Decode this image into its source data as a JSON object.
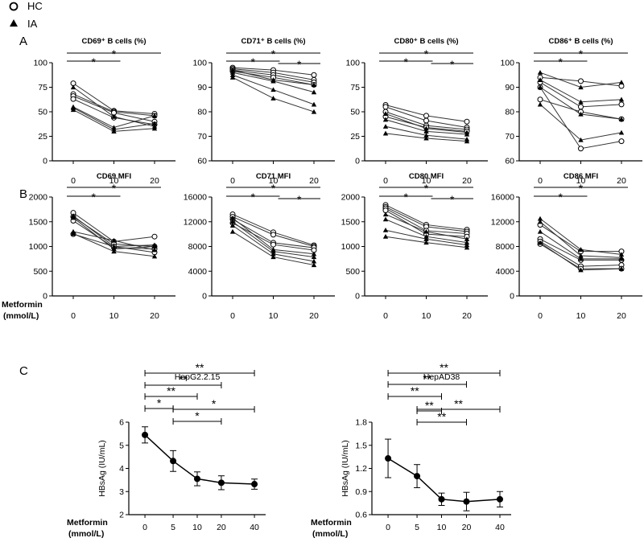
{
  "legend": [
    {
      "symbol": "open-circle",
      "label": "HC"
    },
    {
      "symbol": "filled-triangle",
      "label": "IA"
    }
  ],
  "panel_labels": {
    "a": "A",
    "b": "B",
    "c": "C"
  },
  "x_axis_label": {
    "line1": "Metformin",
    "line2": "(mmol/L)"
  },
  "chart_data": [
    {
      "id": "cd69pct",
      "type": "line",
      "title": "CD69⁺ B cells (%)",
      "categories": [
        "0",
        "10",
        "20"
      ],
      "ylim": [
        0,
        100
      ],
      "yticks": [
        "0",
        "25",
        "50",
        "75",
        "100"
      ],
      "series": [
        {
          "name": "HC",
          "values": [
            79,
            51,
            48
          ]
        },
        {
          "name": "HC",
          "values": [
            68,
            50,
            46
          ]
        },
        {
          "name": "HC",
          "values": [
            66,
            49,
            40
          ]
        },
        {
          "name": "HC",
          "values": [
            63,
            44,
            37
          ]
        },
        {
          "name": "IA",
          "values": [
            75,
            45,
            35
          ]
        },
        {
          "name": "IA",
          "values": [
            55,
            34,
            46
          ]
        },
        {
          "name": "IA",
          "values": [
            54,
            32,
            38
          ]
        },
        {
          "name": "IA",
          "values": [
            52,
            30,
            33
          ]
        }
      ],
      "brackets": [
        {
          "from": 0,
          "to": 1,
          "label": "*"
        },
        {
          "from": 0,
          "to": 2,
          "label": "*"
        }
      ]
    },
    {
      "id": "cd71pct",
      "type": "line",
      "title": "CD71⁺ B cells (%)",
      "categories": [
        "0",
        "10",
        "20"
      ],
      "ylim": [
        60,
        100
      ],
      "yticks": [
        "60",
        "70",
        "80",
        "90",
        "100"
      ],
      "series": [
        {
          "name": "HC",
          "values": [
            98,
            97,
            95
          ]
        },
        {
          "name": "HC",
          "values": [
            97.5,
            96,
            93
          ]
        },
        {
          "name": "HC",
          "values": [
            97,
            95,
            92
          ]
        },
        {
          "name": "HC",
          "values": [
            96.5,
            94,
            91
          ]
        },
        {
          "name": "IA",
          "values": [
            97,
            93,
            91
          ]
        },
        {
          "name": "IA",
          "values": [
            96,
            92.5,
            88
          ]
        },
        {
          "name": "IA",
          "values": [
            95,
            89,
            83
          ]
        },
        {
          "name": "IA",
          "values": [
            94,
            85.5,
            80
          ]
        }
      ],
      "brackets": [
        {
          "from": 0,
          "to": 1,
          "label": "*"
        },
        {
          "from": 0,
          "to": 2,
          "label": "*"
        },
        {
          "from": 1,
          "to": 2,
          "label": "*"
        }
      ]
    },
    {
      "id": "cd80pct",
      "type": "line",
      "title": "CD80⁺ B cells (%)",
      "categories": [
        "0",
        "10",
        "20"
      ],
      "ylim": [
        0,
        100
      ],
      "yticks": [
        "0",
        "25",
        "50",
        "75",
        "100"
      ],
      "series": [
        {
          "name": "HC",
          "values": [
            57,
            46,
            40
          ]
        },
        {
          "name": "HC",
          "values": [
            55,
            41,
            34
          ]
        },
        {
          "name": "HC",
          "values": [
            50,
            36,
            32
          ]
        },
        {
          "name": "HC",
          "values": [
            45,
            34,
            30
          ]
        },
        {
          "name": "IA",
          "values": [
            48,
            33,
            29
          ]
        },
        {
          "name": "IA",
          "values": [
            42,
            30,
            27
          ]
        },
        {
          "name": "IA",
          "values": [
            35,
            26,
            22
          ]
        },
        {
          "name": "IA",
          "values": [
            28,
            23,
            20
          ]
        }
      ],
      "brackets": [
        {
          "from": 0,
          "to": 1,
          "label": "*"
        },
        {
          "from": 0,
          "to": 2,
          "label": "*"
        },
        {
          "from": 1,
          "to": 2,
          "label": "*"
        }
      ]
    },
    {
      "id": "cd86pct",
      "type": "line",
      "title": "CD86⁺ B cells (%)",
      "categories": [
        "0",
        "10",
        "20"
      ],
      "ylim": [
        60,
        100
      ],
      "yticks": [
        "60",
        "70",
        "80",
        "90",
        "100"
      ],
      "series": [
        {
          "name": "HC",
          "values": [
            94,
            92.5,
            90.5
          ]
        },
        {
          "name": "HC",
          "values": [
            92,
            82,
            83
          ]
        },
        {
          "name": "HC",
          "values": [
            90,
            65,
            68
          ]
        },
        {
          "name": "HC",
          "values": [
            85,
            80,
            77
          ]
        },
        {
          "name": "IA",
          "values": [
            96,
            90,
            92
          ]
        },
        {
          "name": "IA",
          "values": [
            93,
            84,
            85
          ]
        },
        {
          "name": "IA",
          "values": [
            90,
            79,
            77
          ]
        },
        {
          "name": "IA",
          "values": [
            83,
            68.5,
            71.5
          ]
        }
      ],
      "brackets": [
        {
          "from": 0,
          "to": 1,
          "label": "*"
        },
        {
          "from": 0,
          "to": 2,
          "label": "*"
        }
      ]
    },
    {
      "id": "cd69mfi",
      "type": "line",
      "title": "CD69 MFI",
      "categories": [
        "0",
        "10",
        "20"
      ],
      "ylim": [
        0,
        2000
      ],
      "yticks": [
        "0",
        "500",
        "1000",
        "1500",
        "2000"
      ],
      "series": [
        {
          "name": "HC",
          "values": [
            1680,
            1100,
            1200
          ]
        },
        {
          "name": "HC",
          "values": [
            1600,
            1050,
            1000
          ]
        },
        {
          "name": "HC",
          "values": [
            1520,
            980,
            950
          ]
        },
        {
          "name": "HC",
          "values": [
            1250,
            1000,
            880
          ]
        },
        {
          "name": "IA",
          "values": [
            1620,
            1000,
            1030
          ]
        },
        {
          "name": "IA",
          "values": [
            1580,
            950,
            1000
          ]
        },
        {
          "name": "IA",
          "values": [
            1300,
            1120,
            930
          ]
        },
        {
          "name": "IA",
          "values": [
            1260,
            900,
            800
          ]
        }
      ],
      "brackets": [
        {
          "from": 0,
          "to": 1,
          "label": "*"
        },
        {
          "from": 0,
          "to": 2,
          "label": "*"
        }
      ]
    },
    {
      "id": "cd71mfi",
      "type": "line",
      "title": "CD71 MFI",
      "categories": [
        "0",
        "10",
        "20"
      ],
      "ylim": [
        0,
        16000
      ],
      "yticks": [
        "0",
        "4000",
        "8000",
        "12000",
        "16000"
      ],
      "series": [
        {
          "name": "HC",
          "values": [
            13200,
            10300,
            8200
          ]
        },
        {
          "name": "HC",
          "values": [
            12800,
            9900,
            8000
          ]
        },
        {
          "name": "HC",
          "values": [
            12400,
            8600,
            7800
          ]
        },
        {
          "name": "HC",
          "values": [
            11800,
            8300,
            7400
          ]
        },
        {
          "name": "IA",
          "values": [
            12600,
            7500,
            6800
          ]
        },
        {
          "name": "IA",
          "values": [
            12000,
            7200,
            6300
          ]
        },
        {
          "name": "IA",
          "values": [
            11400,
            6800,
            5600
          ]
        },
        {
          "name": "IA",
          "values": [
            10400,
            6300,
            5000
          ]
        }
      ],
      "brackets": [
        {
          "from": 0,
          "to": 1,
          "label": "*"
        },
        {
          "from": 0,
          "to": 2,
          "label": "*"
        },
        {
          "from": 1,
          "to": 2,
          "label": "*"
        }
      ]
    },
    {
      "id": "cd80mfi",
      "type": "line",
      "title": "CD80 MFI",
      "categories": [
        "0",
        "10",
        "20"
      ],
      "ylim": [
        0,
        2000
      ],
      "yticks": [
        "0",
        "500",
        "1000",
        "1500",
        "2000"
      ],
      "series": [
        {
          "name": "HC",
          "values": [
            1840,
            1440,
            1340
          ]
        },
        {
          "name": "HC",
          "values": [
            1800,
            1400,
            1300
          ]
        },
        {
          "name": "HC",
          "values": [
            1770,
            1320,
            1260
          ]
        },
        {
          "name": "HC",
          "values": [
            1730,
            1250,
            1200
          ]
        },
        {
          "name": "IA",
          "values": [
            1650,
            1300,
            1150
          ]
        },
        {
          "name": "IA",
          "values": [
            1550,
            1200,
            1080
          ]
        },
        {
          "name": "IA",
          "values": [
            1330,
            1150,
            1030
          ]
        },
        {
          "name": "IA",
          "values": [
            1200,
            1080,
            980
          ]
        }
      ],
      "brackets": [
        {
          "from": 0,
          "to": 1,
          "label": "*"
        },
        {
          "from": 0,
          "to": 2,
          "label": "*"
        },
        {
          "from": 1,
          "to": 2,
          "label": "*"
        }
      ]
    },
    {
      "id": "cd86mfi",
      "type": "line",
      "title": "CD86 MFI",
      "categories": [
        "0",
        "10",
        "20"
      ],
      "ylim": [
        0,
        16000
      ],
      "yticks": [
        "0",
        "4000",
        "8000",
        "12000",
        "16000"
      ],
      "series": [
        {
          "name": "HC",
          "values": [
            11500,
            7200,
            7200
          ]
        },
        {
          "name": "HC",
          "values": [
            9200,
            5800,
            5800
          ]
        },
        {
          "name": "HC",
          "values": [
            8800,
            4800,
            5000
          ]
        },
        {
          "name": "HC",
          "values": [
            8400,
            4400,
            4400
          ]
        },
        {
          "name": "IA",
          "values": [
            12500,
            7500,
            6700
          ]
        },
        {
          "name": "IA",
          "values": [
            12000,
            6500,
            6200
          ]
        },
        {
          "name": "IA",
          "values": [
            10400,
            6000,
            6000
          ]
        },
        {
          "name": "IA",
          "values": [
            8600,
            4200,
            4400
          ]
        }
      ],
      "brackets": [
        {
          "from": 0,
          "to": 1,
          "label": "*"
        },
        {
          "from": 0,
          "to": 2,
          "label": "*"
        }
      ]
    },
    {
      "id": "hepg2",
      "type": "line",
      "title": "HepG2.2.15",
      "categories": [
        "0",
        "5",
        "10",
        "20",
        "40"
      ],
      "ylabel": "HBsAg (IU/mL)",
      "ylim": [
        2,
        6
      ],
      "yticks": [
        "2",
        "3",
        "4",
        "5",
        "6"
      ],
      "values": [
        5.45,
        4.32,
        3.55,
        3.38,
        3.32
      ],
      "err": [
        0.35,
        0.45,
        0.3,
        0.3,
        0.22
      ],
      "brackets": [
        {
          "from": 0,
          "to": 1,
          "label": "*"
        },
        {
          "from": 0,
          "to": 2,
          "label": "**"
        },
        {
          "from": 0,
          "to": 3,
          "label": "**"
        },
        {
          "from": 0,
          "to": 4,
          "label": "**"
        },
        {
          "from": 1,
          "to": 3,
          "label": "*"
        },
        {
          "from": 1,
          "to": 4,
          "label": "*"
        }
      ]
    },
    {
      "id": "hepad38",
      "type": "line",
      "title": "HepAD38",
      "categories": [
        "0",
        "5",
        "10",
        "20",
        "40"
      ],
      "ylabel": "HBsAg (IU/mL)",
      "ylim": [
        0.6,
        1.8
      ],
      "yticks": [
        "0.6",
        "0.9",
        "1.2",
        "1.5",
        "1.8"
      ],
      "values": [
        1.33,
        1.1,
        0.8,
        0.77,
        0.8
      ],
      "err": [
        0.25,
        0.15,
        0.08,
        0.12,
        0.1
      ],
      "brackets": [
        {
          "from": 0,
          "to": 2,
          "label": "**"
        },
        {
          "from": 0,
          "to": 3,
          "label": "**"
        },
        {
          "from": 0,
          "to": 4,
          "label": "**"
        },
        {
          "from": 1,
          "to": 2,
          "label": "**"
        },
        {
          "from": 1,
          "to": 3,
          "label": "**"
        },
        {
          "from": 1,
          "to": 4,
          "label": "**"
        }
      ]
    }
  ]
}
